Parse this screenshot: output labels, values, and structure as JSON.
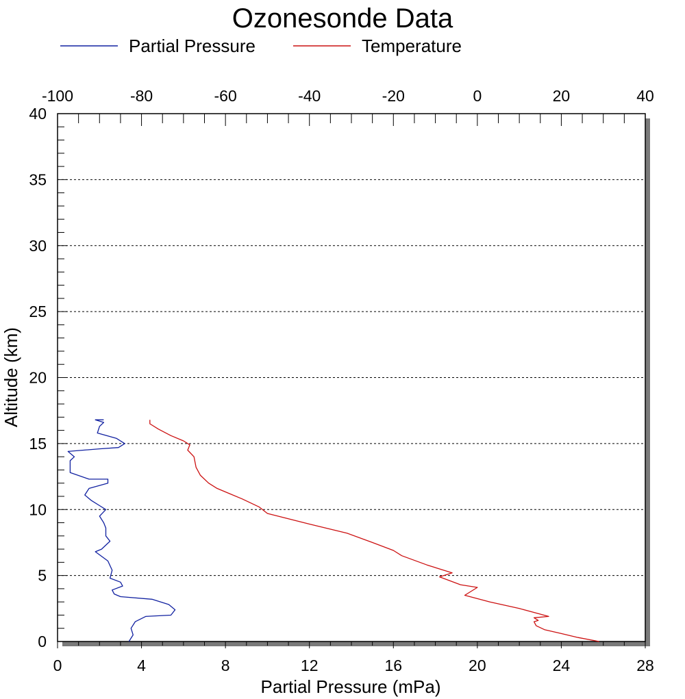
{
  "chart_data": {
    "type": "line",
    "title": "Ozonesonde Data",
    "xlabel": "Partial Pressure (mPa)",
    "ylabel": "Altitude (km)",
    "x_bottom": {
      "range": [
        0,
        28
      ],
      "ticks": [
        "0",
        "4",
        "8",
        "12",
        "16",
        "20",
        "24",
        "28"
      ]
    },
    "x_top": {
      "range": [
        -100,
        40
      ],
      "ticks": [
        "-100",
        "-80",
        "-60",
        "-40",
        "-20",
        "0",
        "20",
        "40"
      ]
    },
    "y": {
      "range": [
        0,
        40
      ],
      "ticks": [
        "0",
        "5",
        "10",
        "15",
        "20",
        "25",
        "30",
        "35",
        "40"
      ]
    },
    "grid": "horizontal dotted at major y ticks",
    "legend_position": "top",
    "series": [
      {
        "name": "Partial Pressure",
        "color": "#1020a0",
        "axis": "bottom",
        "points": [
          [
            3.4,
            0.0
          ],
          [
            3.6,
            0.5
          ],
          [
            3.5,
            1.0
          ],
          [
            3.7,
            1.5
          ],
          [
            4.2,
            1.9
          ],
          [
            5.4,
            2.0
          ],
          [
            5.6,
            2.4
          ],
          [
            5.3,
            2.8
          ],
          [
            4.5,
            3.2
          ],
          [
            3.0,
            3.4
          ],
          [
            2.7,
            3.6
          ],
          [
            2.6,
            3.9
          ],
          [
            3.1,
            4.2
          ],
          [
            3.0,
            4.5
          ],
          [
            2.5,
            4.8
          ],
          [
            2.6,
            5.4
          ],
          [
            2.4,
            6.1
          ],
          [
            1.8,
            6.8
          ],
          [
            2.1,
            7.0
          ],
          [
            2.5,
            7.6
          ],
          [
            2.3,
            8.0
          ],
          [
            2.3,
            8.6
          ],
          [
            2.2,
            9.0
          ],
          [
            2.0,
            9.5
          ],
          [
            2.3,
            10.0
          ],
          [
            2.0,
            10.3
          ],
          [
            1.6,
            10.7
          ],
          [
            1.3,
            11.1
          ],
          [
            1.5,
            11.6
          ],
          [
            2.4,
            12.0
          ],
          [
            2.4,
            12.3
          ],
          [
            1.5,
            12.3
          ],
          [
            0.6,
            12.8
          ],
          [
            0.6,
            13.7
          ],
          [
            0.8,
            14.0
          ],
          [
            0.5,
            14.4
          ],
          [
            2.0,
            14.6
          ],
          [
            2.9,
            14.7
          ],
          [
            3.2,
            15.0
          ],
          [
            2.8,
            15.4
          ],
          [
            1.9,
            15.8
          ],
          [
            2.0,
            16.3
          ],
          [
            2.2,
            16.6
          ],
          [
            1.8,
            16.8
          ],
          [
            2.2,
            16.8
          ]
        ]
      },
      {
        "name": "Temperature",
        "color": "#cc1010",
        "axis": "top",
        "points": [
          [
            29,
            0.0
          ],
          [
            24,
            0.3
          ],
          [
            20,
            0.6
          ],
          [
            16,
            0.9
          ],
          [
            14,
            1.2
          ],
          [
            13.5,
            1.5
          ],
          [
            14.5,
            1.6
          ],
          [
            13.5,
            1.8
          ],
          [
            17,
            1.9
          ],
          [
            10,
            2.5
          ],
          [
            3,
            3.0
          ],
          [
            -3,
            3.5
          ],
          [
            0,
            4.1
          ],
          [
            -4,
            4.3
          ],
          [
            -9,
            4.9
          ],
          [
            -6,
            5.2
          ],
          [
            -12,
            5.8
          ],
          [
            -18,
            6.5
          ],
          [
            -20,
            6.9
          ],
          [
            -25,
            7.5
          ],
          [
            -31,
            8.2
          ],
          [
            -40,
            8.9
          ],
          [
            -50,
            9.7
          ],
          [
            -52,
            10.2
          ],
          [
            -56,
            10.8
          ],
          [
            -59,
            11.2
          ],
          [
            -62,
            11.6
          ],
          [
            -64,
            12.0
          ],
          [
            -66,
            12.6
          ],
          [
            -67,
            13.2
          ],
          [
            -67.5,
            14.0
          ],
          [
            -69,
            14.5
          ],
          [
            -68.5,
            14.9
          ],
          [
            -70,
            15.2
          ],
          [
            -73,
            15.6
          ],
          [
            -76,
            16.1
          ],
          [
            -78,
            16.5
          ],
          [
            -78,
            16.8
          ]
        ]
      }
    ]
  }
}
